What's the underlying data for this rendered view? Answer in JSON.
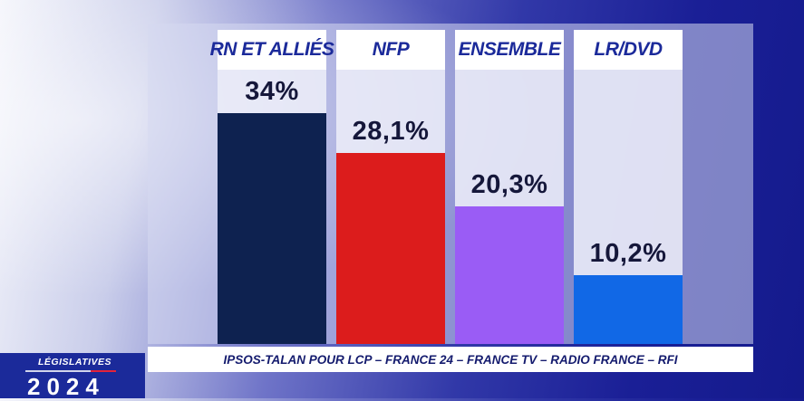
{
  "chart_data": {
    "type": "bar",
    "title": "",
    "categories": [
      "RN ET ALLIÉS",
      "NFP",
      "ENSEMBLE",
      "LR/DVD"
    ],
    "values": [
      34,
      28.1,
      20.3,
      10.2
    ],
    "value_labels": [
      "34%",
      "28,1%",
      "20,3%",
      "10,2%"
    ],
    "colors": [
      "#0e2250",
      "#dc1c1c",
      "#9a5cf5",
      "#1168e6"
    ],
    "unit": "%",
    "ylim": [
      0,
      46
    ],
    "grid": false,
    "source": "IPSOS-TALAN POUR LCP – FRANCE 24 – FRANCE TV – RADIO FRANCE – RFI"
  },
  "branding": {
    "label": "LÉGISLATIVES",
    "year": "2024"
  }
}
